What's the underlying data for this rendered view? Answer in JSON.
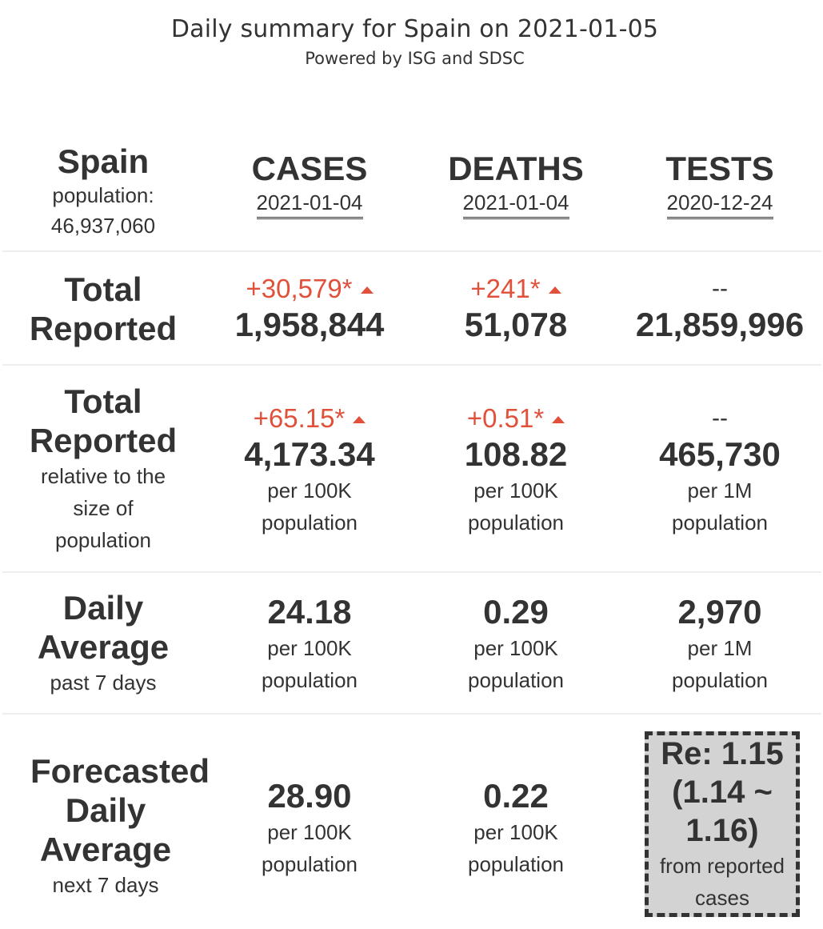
{
  "header": {
    "title": "Daily summary for Spain on 2021-01-05",
    "subtitle": "Powered by ISG and SDSC"
  },
  "country": {
    "name": "Spain",
    "population_label": "population:",
    "population_value": "46,937,060"
  },
  "columns": {
    "cases": {
      "label": "CASES",
      "date": "2021-01-04"
    },
    "deaths": {
      "label": "DEATHS",
      "date": "2021-01-04"
    },
    "tests": {
      "label": "TESTS",
      "date": "2020-12-24"
    }
  },
  "rows": {
    "total": {
      "label_line1": "Total",
      "label_line2": "Reported",
      "cases_delta": "+30,579*",
      "cases_value": "1,958,844",
      "deaths_delta": "+241*",
      "deaths_value": "51,078",
      "tests_delta": "--",
      "tests_value": "21,859,996"
    },
    "relative": {
      "label_line1": "Total",
      "label_line2": "Reported",
      "label_sub1": "relative to the",
      "label_sub2": "size of",
      "label_sub3": "population",
      "cases_delta": "+65.15*",
      "cases_value": "4,173.34",
      "cases_unit1": "per 100K",
      "cases_unit2": "population",
      "deaths_delta": "+0.51*",
      "deaths_value": "108.82",
      "deaths_unit1": "per 100K",
      "deaths_unit2": "population",
      "tests_delta": "--",
      "tests_value": "465,730",
      "tests_unit1": "per 1M",
      "tests_unit2": "population"
    },
    "daily_avg": {
      "label_line1": "Daily",
      "label_line2": "Average",
      "label_sub": "past 7 days",
      "cases_value": "24.18",
      "cases_unit1": "per 100K",
      "cases_unit2": "population",
      "deaths_value": "0.29",
      "deaths_unit1": "per 100K",
      "deaths_unit2": "population",
      "tests_value": "2,970",
      "tests_unit1": "per 1M",
      "tests_unit2": "population"
    },
    "forecast": {
      "label_line1": "Forecasted",
      "label_line2": "Daily",
      "label_line3": "Average",
      "label_sub": "next 7 days",
      "cases_value": "28.90",
      "cases_unit1": "per 100K",
      "cases_unit2": "population",
      "deaths_value": "0.22",
      "deaths_unit1": "per 100K",
      "deaths_unit2": "population",
      "re_line1": "Re: 1.15",
      "re_line2": "(1.14 ~",
      "re_line3": "1.16)",
      "re_note1": "from reported",
      "re_note2": "cases"
    }
  },
  "colors": {
    "text": "#333333",
    "delta_red": "#e0503a",
    "separator": "#eeeeee",
    "re_box_bg": "#d3d3d3"
  },
  "icons": {
    "delta": "triangle-up-icon"
  }
}
